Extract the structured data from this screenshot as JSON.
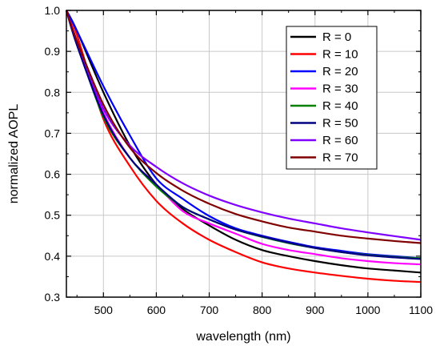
{
  "chart_data": {
    "type": "line",
    "xlabel": "wavelength (nm)",
    "ylabel": "normalized AOPL",
    "xlim": [
      430,
      1100
    ],
    "ylim": [
      0.3,
      1.0
    ],
    "xticks": [
      500,
      600,
      700,
      800,
      900,
      1000,
      1100
    ],
    "yticks": [
      0.3,
      0.4,
      0.5,
      0.6,
      0.7,
      0.8,
      0.9,
      1.0
    ],
    "ytick_labels": [
      "0.3",
      "0.4",
      "0.5",
      "0.6",
      "0.7",
      "0.8",
      "0.9",
      "1.0"
    ],
    "grid": true,
    "legend_position": "top-right",
    "legend_var": "R",
    "x": [
      430,
      450,
      500,
      550,
      600,
      650,
      700,
      750,
      800,
      850,
      900,
      950,
      1000,
      1050,
      1100
    ],
    "series": [
      {
        "name": "0",
        "label": "R =  0",
        "color": "#000000",
        "values": [
          1.0,
          0.95,
          0.8,
          0.67,
          0.575,
          0.515,
          0.475,
          0.44,
          0.415,
          0.4,
          0.388,
          0.378,
          0.37,
          0.365,
          0.36
        ]
      },
      {
        "name": "10",
        "label": "R = 10",
        "color": "#ff0000",
        "values": [
          1.0,
          0.94,
          0.735,
          0.62,
          0.535,
          0.48,
          0.44,
          0.41,
          0.385,
          0.37,
          0.36,
          0.352,
          0.345,
          0.34,
          0.337
        ]
      },
      {
        "name": "20",
        "label": "R = 20",
        "color": "#0000ff",
        "values": [
          1.0,
          0.95,
          0.815,
          0.695,
          0.59,
          0.54,
          0.498,
          0.468,
          0.45,
          0.435,
          0.422,
          0.413,
          0.405,
          0.4,
          0.395
        ]
      },
      {
        "name": "30",
        "label": "R = 30",
        "color": "#ff00ff",
        "values": [
          1.0,
          0.925,
          0.75,
          0.64,
          0.575,
          0.51,
          0.48,
          0.455,
          0.43,
          0.415,
          0.405,
          0.395,
          0.388,
          0.383,
          0.38
        ]
      },
      {
        "name": "40",
        "label": "R = 40",
        "color": "#008000",
        "values": [
          1.0,
          0.92,
          0.74,
          0.64,
          0.57,
          0.52,
          0.49,
          0.465,
          0.447,
          0.432,
          0.42,
          0.41,
          0.403,
          0.398,
          0.395
        ]
      },
      {
        "name": "50",
        "label": "R = 50",
        "color": "#000080",
        "values": [
          1.0,
          0.915,
          0.745,
          0.64,
          0.575,
          0.52,
          0.49,
          0.465,
          0.448,
          0.433,
          0.42,
          0.41,
          0.402,
          0.397,
          0.393
        ]
      },
      {
        "name": "60",
        "label": "R = 60",
        "color": "#8000ff",
        "values": [
          1.0,
          0.925,
          0.76,
          0.67,
          0.618,
          0.578,
          0.548,
          0.525,
          0.507,
          0.492,
          0.48,
          0.468,
          0.458,
          0.449,
          0.44
        ]
      },
      {
        "name": "70",
        "label": "R = 70",
        "color": "#800000",
        "values": [
          1.0,
          0.925,
          0.77,
          0.665,
          0.603,
          0.56,
          0.528,
          0.503,
          0.485,
          0.47,
          0.46,
          0.45,
          0.443,
          0.437,
          0.432
        ]
      }
    ]
  }
}
